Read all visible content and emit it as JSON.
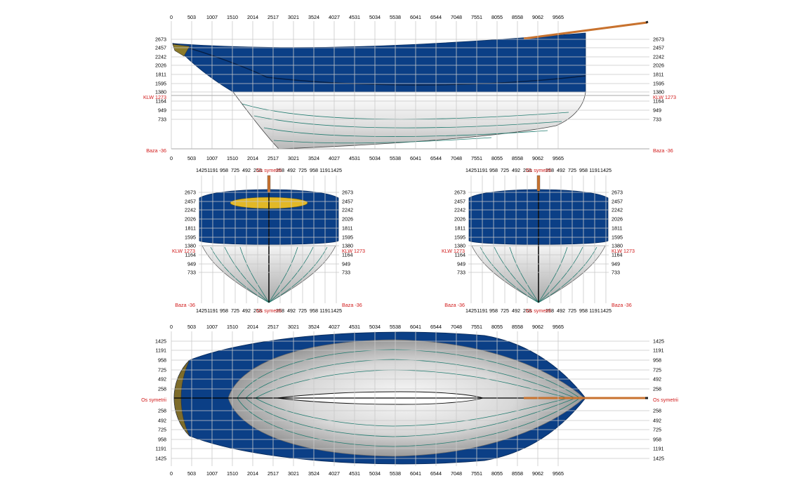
{
  "colors": {
    "hull": "#0b3f86",
    "underwater": "#e6e6e6",
    "station": "#1f7a6e",
    "bowsprit": "#c8722e",
    "deck": "#e2b827",
    "label_red": "#d11a1a",
    "grid": "#c9c9c9"
  },
  "profile": {
    "x_ticks": [
      "0",
      "503",
      "1007",
      "1510",
      "2014",
      "2517",
      "3021",
      "3524",
      "4027",
      "4531",
      "5034",
      "5538",
      "6041",
      "6544",
      "7048",
      "7551",
      "8055",
      "8558",
      "9062",
      "9565"
    ],
    "y_ticks": [
      "2673",
      "2457",
      "2242",
      "2026",
      "1811",
      "1595",
      "1380",
      "1164",
      "949",
      "733"
    ],
    "waterline_label": "KLW 1273",
    "base_label": "Baza -36"
  },
  "body_plan": {
    "beam_ticks": [
      "1425",
      "1191",
      "958",
      "725",
      "492",
      "258",
      "258",
      "492",
      "725",
      "958",
      "1191",
      "1425"
    ],
    "center_label": "Os symetrii",
    "y_ticks": [
      "2673",
      "2457",
      "2242",
      "2026",
      "1811",
      "1595",
      "1380",
      "1164",
      "949",
      "733"
    ],
    "waterline_label": "KLW 1273",
    "base_label": "Baza -36"
  },
  "plan_view": {
    "x_ticks": [
      "0",
      "503",
      "1007",
      "1510",
      "2014",
      "2517",
      "3021",
      "3524",
      "4027",
      "4531",
      "5034",
      "5538",
      "6041",
      "6544",
      "7048",
      "7551",
      "8055",
      "8558",
      "9062",
      "9565"
    ],
    "y_ticks": [
      "1425",
      "1191",
      "958",
      "725",
      "492",
      "258",
      "258",
      "492",
      "725",
      "958",
      "1191",
      "1425"
    ],
    "center_label": "Os symetrii"
  }
}
